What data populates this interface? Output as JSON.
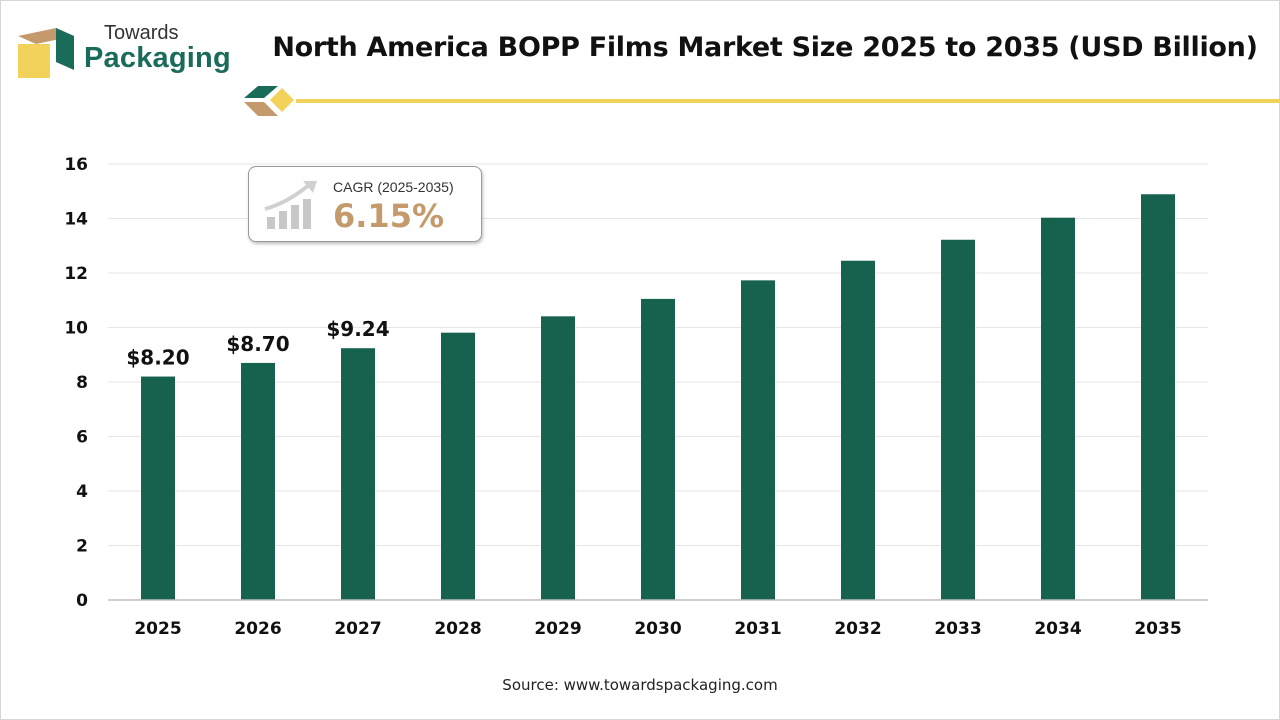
{
  "brand": {
    "line1": "Towards",
    "line2": "Packaging"
  },
  "title": "North America BOPP Films Market Size 2025 to 2035 (USD Billion)",
  "cagr": {
    "label": "CAGR (2025-2035)",
    "value": "6.15%"
  },
  "source": "Source: www.towardspackaging.com",
  "colors": {
    "bar": "#17614f",
    "accent_yellow": "#f2d25b",
    "accent_green": "#1a6b5a",
    "accent_tan": "#c49a6c"
  },
  "chart_data": {
    "type": "bar",
    "categories": [
      "2025",
      "2026",
      "2027",
      "2028",
      "2029",
      "2030",
      "2031",
      "2032",
      "2033",
      "2034",
      "2035"
    ],
    "values": [
      8.2,
      8.7,
      9.24,
      9.81,
      10.41,
      11.05,
      11.73,
      12.45,
      13.22,
      14.03,
      14.89
    ],
    "data_labels": [
      "$8.20",
      "$8.70",
      "$9.24",
      "",
      "",
      "",
      "",
      "",
      "",
      "",
      ""
    ],
    "ylim": [
      0,
      16
    ],
    "yticks": [
      "0",
      "2",
      "4",
      "6",
      "8",
      "10",
      "12",
      "14",
      "16"
    ],
    "grid": true
  }
}
